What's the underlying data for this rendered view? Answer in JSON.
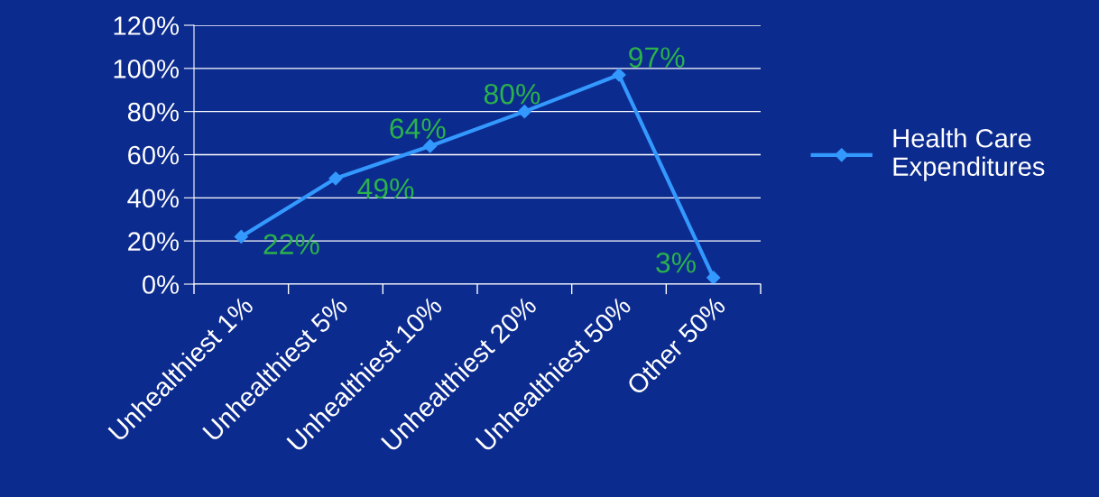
{
  "chart_data": {
    "type": "line",
    "categories": [
      "Unhealthiest 1%",
      "Unhealthiest 5%",
      "Unhealthiest 10%",
      "Unhealthiest 20%",
      "Unhealthiest 50%",
      "Other 50%"
    ],
    "series": [
      {
        "name": "Health Care\nExpenditures",
        "color": "#3399ff",
        "values": [
          22,
          49,
          64,
          80,
          97,
          3
        ],
        "value_labels": [
          "22%",
          "49%",
          "64%",
          "80%",
          "97%",
          "3%"
        ]
      }
    ],
    "ylim": [
      0,
      120
    ],
    "yticks": [
      {
        "value": 0,
        "label": "0%"
      },
      {
        "value": 20,
        "label": "20%"
      },
      {
        "value": 40,
        "label": "40%"
      },
      {
        "value": 60,
        "label": "60%"
      },
      {
        "value": 80,
        "label": "80%"
      },
      {
        "value": 100,
        "label": "100%"
      },
      {
        "value": 120,
        "label": "120%"
      }
    ],
    "grid": "y",
    "legend": "right",
    "marker": "diamond",
    "line_style": "solid"
  }
}
